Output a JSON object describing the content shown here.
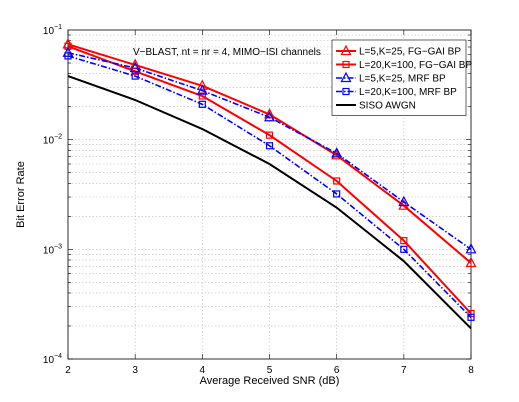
{
  "chart_data": {
    "type": "line",
    "title": "",
    "xlabel": "Average Received SNR (dB)",
    "ylabel": "Bit Error Rate",
    "xlim": [
      2,
      8
    ],
    "ylim": [
      0.0001,
      0.1
    ],
    "yscale": "log",
    "grid": true,
    "legend_position": "top-right",
    "annotation": "V−BLAST, nt = nr = 4, MIMO−ISI channels",
    "x_ticks": [
      "2",
      "3",
      "4",
      "5",
      "6",
      "7",
      "8"
    ],
    "y_ticks": [
      {
        "base": "10",
        "exp": "−4",
        "value": 0.0001
      },
      {
        "base": "10",
        "exp": "−3",
        "value": 0.001
      },
      {
        "base": "10",
        "exp": "−2",
        "value": 0.01
      },
      {
        "base": "10",
        "exp": "−1",
        "value": 0.1
      }
    ],
    "x": [
      2,
      3,
      4,
      5,
      6,
      7,
      8
    ],
    "series": [
      {
        "name": "L=5,K=25, FG−GAI BP",
        "color": "#ff0000",
        "marker": "triangle",
        "dash": "solid",
        "values": [
          0.074,
          0.048,
          0.031,
          0.017,
          0.0072,
          0.0025,
          0.00075
        ]
      },
      {
        "name": "L=20,K=100, FG−GAI BP",
        "color": "#ff0000",
        "marker": "square",
        "dash": "solid",
        "values": [
          0.071,
          0.042,
          0.025,
          0.011,
          0.0042,
          0.0012,
          0.00026
        ]
      },
      {
        "name": "L=5,K=25, MRF BP",
        "color": "#0000ff",
        "marker": "triangle",
        "dash": "dashdot",
        "values": [
          0.062,
          0.045,
          0.028,
          0.016,
          0.0075,
          0.0027,
          0.001
        ]
      },
      {
        "name": "L=20,K=100, MRF BP",
        "color": "#0000ff",
        "marker": "square",
        "dash": "dashdot",
        "values": [
          0.058,
          0.038,
          0.021,
          0.0088,
          0.0032,
          0.001,
          0.00024
        ]
      },
      {
        "name": "SISO AWGN",
        "color": "#000000",
        "marker": "none",
        "dash": "solid",
        "values": [
          0.038,
          0.023,
          0.0125,
          0.006,
          0.0024,
          0.00078,
          0.00019
        ]
      }
    ]
  }
}
